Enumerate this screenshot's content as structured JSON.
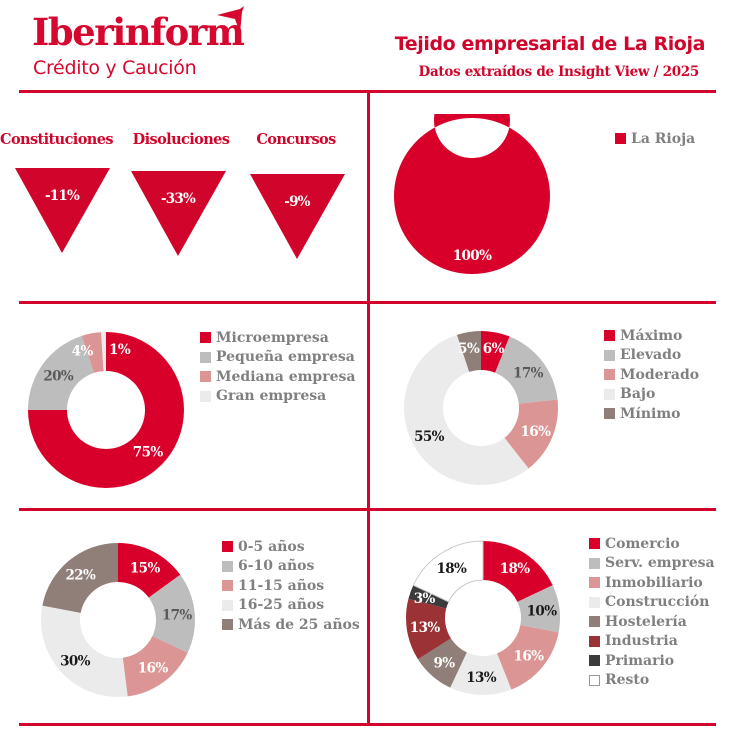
{
  "header": {
    "logo_name": "Iberinform",
    "logo_tagline": "Crédito y Caución",
    "title": "Tejido empresarial de La Rioja",
    "subtitle": "Datos extraídos de Insight View / 2025"
  },
  "colors": {
    "brand_red": "#d1052c",
    "gray": "#bdbdbd",
    "pink": "#db9595",
    "light": "#ebebeb",
    "taupe": "#8f7f78",
    "dark_red": "#9b3236",
    "charcoal": "#3b3b3b",
    "white": "#ffffff",
    "legend_text": "#808080"
  },
  "kpis": [
    {
      "label": "Constituciones",
      "value": "-11%",
      "direction": "down"
    },
    {
      "label": "Disoluciones",
      "value": "-33%",
      "direction": "down"
    },
    {
      "label": "Concursos",
      "value": "-9%",
      "direction": "down"
    }
  ],
  "chart_data": [
    {
      "type": "pie",
      "variant": "donut",
      "id": "region",
      "categories": [
        "La Rioja"
      ],
      "values": [
        100
      ],
      "labels": [
        "100%"
      ],
      "colors": [
        "#d8002a"
      ],
      "legend": "right"
    },
    {
      "type": "pie",
      "variant": "donut",
      "id": "size",
      "categories": [
        "Microempresa",
        "Pequeña empresa",
        "Mediana empresa",
        "Gran empresa"
      ],
      "values": [
        75,
        20,
        4,
        1
      ],
      "labels": [
        "75%",
        "20%",
        "4%",
        "1%"
      ],
      "colors": [
        "#d8002a",
        "#bdbdbd",
        "#db9595",
        "#ebebeb"
      ],
      "label_colors": [
        "#ffffff",
        "#595959",
        "#ffffff",
        "#ffffff"
      ],
      "legend": "right"
    },
    {
      "type": "pie",
      "variant": "donut",
      "id": "risk",
      "categories": [
        "Máximo",
        "Elevado",
        "Moderado",
        "Bajo",
        "Mínimo"
      ],
      "values": [
        6,
        17,
        16,
        55,
        5
      ],
      "labels": [
        "6%",
        "17%",
        "16%",
        "55%",
        "5%"
      ],
      "colors": [
        "#d8002a",
        "#bdbdbd",
        "#db9595",
        "#ebebeb",
        "#8f7f78"
      ],
      "label_colors": [
        "#ffffff",
        "#595959",
        "#ffffff",
        "#1a1a1a",
        "#ffffff"
      ],
      "legend": "right"
    },
    {
      "type": "pie",
      "variant": "donut",
      "id": "age",
      "categories": [
        "0-5 años",
        "6-10 años",
        "11-15 años",
        "16-25 años",
        "Más de 25 años"
      ],
      "values": [
        15,
        17,
        16,
        30,
        22
      ],
      "labels": [
        "15%",
        "17%",
        "16%",
        "30%",
        "22%"
      ],
      "colors": [
        "#d8002a",
        "#bdbdbd",
        "#db9595",
        "#ebebeb",
        "#8f7f78"
      ],
      "label_colors": [
        "#ffffff",
        "#595959",
        "#ffffff",
        "#1a1a1a",
        "#ffffff"
      ],
      "legend": "right"
    },
    {
      "type": "pie",
      "variant": "donut",
      "id": "sector",
      "categories": [
        "Comercio",
        "Serv. empresa",
        "Inmobiliario",
        "Construcción",
        "Hostelería",
        "Industria",
        "Primario",
        "Resto"
      ],
      "values": [
        18,
        10,
        16,
        13,
        9,
        13,
        3,
        18
      ],
      "labels": [
        "18%",
        "10%",
        "16%",
        "13%",
        "9%",
        "13%",
        "3%",
        "18%"
      ],
      "colors": [
        "#d8002a",
        "#bdbdbd",
        "#db9595",
        "#ebebeb",
        "#8f7f78",
        "#9b3236",
        "#3b3b3b",
        "#ffffff"
      ],
      "label_colors": [
        "#ffffff",
        "#1a1a1a",
        "#ffffff",
        "#1a1a1a",
        "#ffffff",
        "#ffffff",
        "#ffffff",
        "#1a1a1a"
      ],
      "legend": "right"
    }
  ]
}
